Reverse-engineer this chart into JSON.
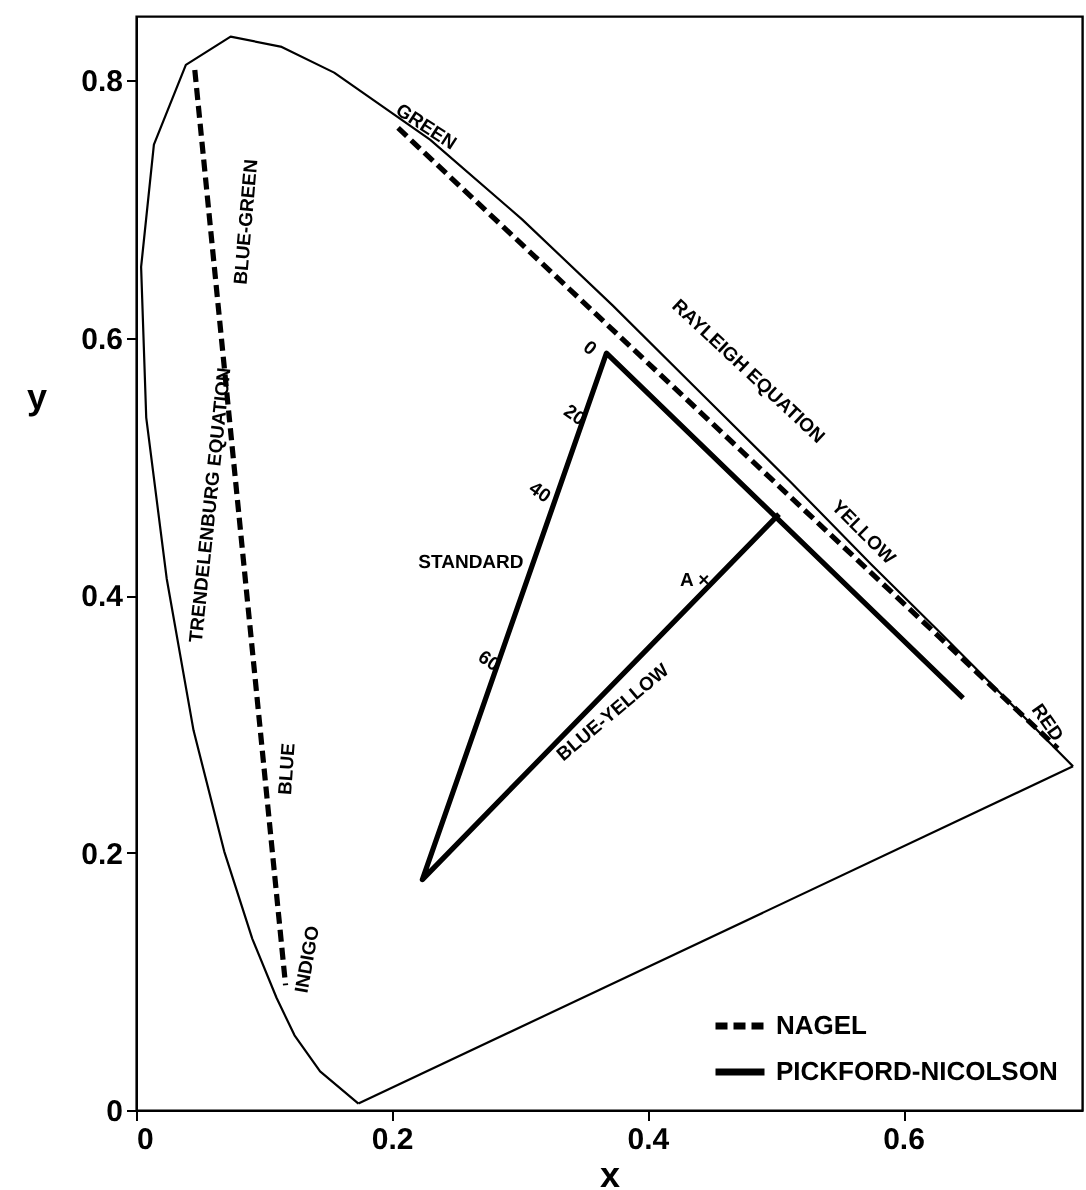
{
  "chart_data": {
    "type": "line",
    "xlabel": "x",
    "ylabel": "y",
    "xlim": [
      0,
      0.74
    ],
    "ylim": [
      0,
      0.85
    ],
    "xticks": [
      0,
      0.2,
      0.4,
      0.6
    ],
    "yticks": [
      0,
      0.2,
      0.4,
      0.6,
      0.8
    ],
    "grid": false,
    "legend": "bottom right",
    "marker": "none",
    "series": [
      {
        "color": "#000000",
        "line_style": "solid",
        "x": [
          0.174,
          0.144,
          0.124,
          0.11,
          0.091,
          0.069,
          0.045,
          0.024,
          0.008,
          0.004,
          0.014,
          0.039,
          0.074,
          0.114,
          0.155,
          0.23,
          0.302,
          0.373,
          0.444,
          0.513,
          0.575,
          0.627,
          0.692,
          0.733
        ],
        "values": [
          0.005,
          0.03,
          0.058,
          0.087,
          0.133,
          0.201,
          0.295,
          0.413,
          0.538,
          0.655,
          0.75,
          0.812,
          0.834,
          0.826,
          0.806,
          0.754,
          0.692,
          0.625,
          0.555,
          0.487,
          0.424,
          0.373,
          0.308,
          0.267
        ]
      },
      {
        "color": "#000000",
        "line_style": "solid",
        "x": [
          0.174,
          0.733
        ],
        "values": [
          0.005,
          0.267
        ]
      },
      {
        "name": "NAGEL",
        "color": "#000000",
        "line_style": "dashed",
        "x": [
          0.046,
          0.117,
          0.16,
          0.205,
          0.721
        ],
        "values": [
          0.808,
          0.097,
          null,
          0.763,
          0.281
        ]
      },
      {
        "name": "PICKFORD-NICOLSON",
        "color": "#000000",
        "line_style": "solid",
        "x": [
          0.647,
          0.368,
          0.224,
          0.503
        ],
        "values": [
          0.32,
          0.588,
          0.179,
          0.463
        ]
      }
    ],
    "annotations": [
      "GREEN",
      "RAYLEIGH EQUATION",
      "YELLOW",
      "RED",
      "TRENDELENBURG EQUATION",
      "BLUE-GREEN",
      "BLUE",
      "INDIGO",
      "BLUE-YELLOW",
      "STANDARD",
      "0",
      "20",
      "40",
      "60",
      "A ×"
    ]
  }
}
